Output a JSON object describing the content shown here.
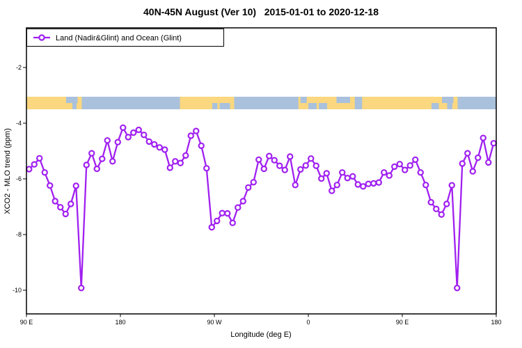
{
  "title": "40N-45N August (Ver 10)   2015-01-01 to 2020-12-18",
  "legend": {
    "label": "Land (Nadir&Glint) and Ocean (Glint)"
  },
  "colors": {
    "line": "#A020F0",
    "marker_fill": "#FFFFFF",
    "land": "#FBD77F",
    "ocean": "#A9C1DC",
    "axis": "#000000"
  },
  "chart_data": {
    "type": "line",
    "title": "40N-45N August (Ver 10)  2015-01-01 to 2020-12-18",
    "xlabel": "Longitude (deg E)",
    "ylabel": "XCO2 - MLO trend (ppm)",
    "x_range": [
      90,
      540
    ],
    "x_ticks": [
      {
        "pos": 90,
        "label": "90 E"
      },
      {
        "pos": 180,
        "label": "180"
      },
      {
        "pos": 270,
        "label": "90 W"
      },
      {
        "pos": 360,
        "label": "0"
      },
      {
        "pos": 450,
        "label": "90 E"
      },
      {
        "pos": 540,
        "label": "180"
      }
    ],
    "y_ticks": [
      {
        "pos": -2,
        "label": "-2"
      },
      {
        "pos": -4,
        "label": "-4"
      },
      {
        "pos": -6,
        "label": "-6"
      },
      {
        "pos": -8,
        "label": "-8"
      },
      {
        "pos": -10,
        "label": "-10"
      }
    ],
    "grid": false,
    "legend_position": "top-left",
    "series": [
      {
        "name": "Land (Nadir&Glint) and Ocean (Glint)",
        "x": [
          92.5,
          97.5,
          102.5,
          107.5,
          112.5,
          117.5,
          122.5,
          127.5,
          132.5,
          137.5,
          142.5,
          147.5,
          152.5,
          157.5,
          162.5,
          167.5,
          172.5,
          177.5,
          182.5,
          187.5,
          192.5,
          197.5,
          202.5,
          207.5,
          212.5,
          217.5,
          222.5,
          227.5,
          232.5,
          237.5,
          242.5,
          247.5,
          252.5,
          257.5,
          262.5,
          267.5,
          272.5,
          277.5,
          282.5,
          287.5,
          292.5,
          297.5,
          302.5,
          307.5,
          312.5,
          317.5,
          322.5,
          327.5,
          332.5,
          337.5,
          342.5,
          347.5,
          352.5,
          357.5,
          362.5,
          367.5,
          372.5,
          377.5,
          382.5,
          387.5,
          392.5,
          397.5,
          402.5,
          407.5,
          412.5,
          417.5,
          422.5,
          427.5,
          432.5,
          437.5,
          442.5,
          447.5,
          452.5,
          457.5,
          462.5,
          467.5,
          472.5,
          477.5,
          482.5,
          487.5,
          492.5,
          497.5,
          502.5,
          507.5,
          512.5,
          517.5,
          522.5,
          527.5,
          532.5,
          537.5
        ],
        "values": [
          -5.65,
          -5.48,
          -5.26,
          -5.77,
          -6.24,
          -6.8,
          -7.02,
          -7.26,
          -6.9,
          -6.25,
          -9.92,
          -5.5,
          -5.08,
          -5.64,
          -5.28,
          -4.62,
          -5.37,
          -4.68,
          -4.16,
          -4.5,
          -4.34,
          -4.24,
          -4.42,
          -4.66,
          -4.76,
          -4.87,
          -4.95,
          -5.6,
          -5.37,
          -5.43,
          -5.16,
          -4.45,
          -4.28,
          -4.81,
          -5.62,
          -7.74,
          -7.51,
          -7.23,
          -7.24,
          -7.58,
          -7.03,
          -6.8,
          -6.31,
          -6.12,
          -5.31,
          -5.64,
          -5.18,
          -5.33,
          -5.53,
          -5.68,
          -5.2,
          -6.22,
          -5.66,
          -5.52,
          -5.27,
          -5.53,
          -5.99,
          -5.8,
          -6.43,
          -6.22,
          -5.77,
          -5.97,
          -5.91,
          -6.2,
          -6.27,
          -6.18,
          -6.16,
          -6.13,
          -5.77,
          -5.88,
          -5.56,
          -5.47,
          -5.68,
          -5.52,
          -5.31,
          -5.77,
          -6.22,
          -6.84,
          -7.08,
          -7.28,
          -6.9,
          -6.23,
          -9.92,
          -5.45,
          -5.08,
          -5.73,
          -5.24,
          -4.53,
          -5.41,
          -4.72
        ]
      }
    ],
    "map_band": {
      "description": "land/ocean strip for 40N-45N",
      "value_top": -3.05,
      "value_bottom": -3.5,
      "base": "ocean",
      "land_segments": [
        {
          "from": 90,
          "to": 128,
          "part": "full"
        },
        {
          "from": 128,
          "to": 134,
          "part": "bottom"
        },
        {
          "from": 138,
          "to": 143,
          "part": "bottom"
        },
        {
          "from": 139,
          "to": 143,
          "part": "top"
        },
        {
          "from": 237,
          "to": 289,
          "part": "full"
        },
        {
          "from": 350.5,
          "to": 450,
          "part": "full"
        },
        {
          "from": 450,
          "to": 488,
          "part": "full"
        },
        {
          "from": 488,
          "to": 493,
          "part": "bottom"
        },
        {
          "from": 498,
          "to": 503,
          "part": "bottom"
        },
        {
          "from": 499,
          "to": 503,
          "part": "top"
        }
      ],
      "ocean_segments": [
        {
          "from": 268,
          "to": 273,
          "part": "bottom"
        },
        {
          "from": 275,
          "to": 285,
          "part": "bottom"
        },
        {
          "from": 352.5,
          "to": 358.5,
          "part": "top"
        },
        {
          "from": 360,
          "to": 368,
          "part": "bottom"
        },
        {
          "from": 370,
          "to": 378,
          "part": "bottom"
        },
        {
          "from": 387,
          "to": 400,
          "part": "top"
        },
        {
          "from": 404.5,
          "to": 411.5,
          "part": "full"
        },
        {
          "from": 478,
          "to": 485,
          "part": "bottom"
        }
      ]
    }
  }
}
